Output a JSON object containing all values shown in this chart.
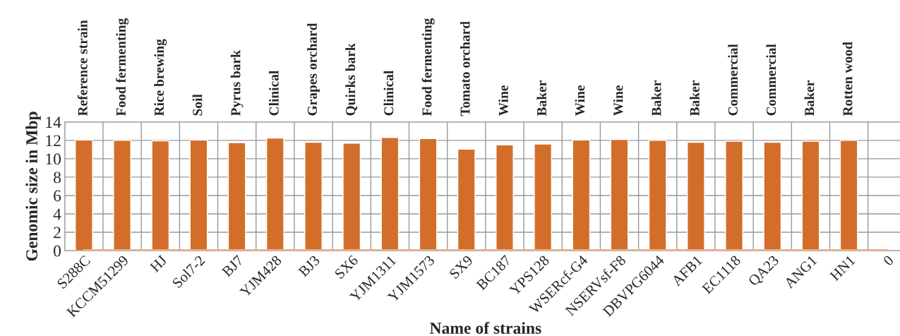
{
  "chart_data": {
    "type": "bar",
    "xlabel": "Name of strains",
    "ylabel": "Genomic size in Mbp",
    "categories": [
      "S288C",
      "KCCM51299",
      "HJ",
      "Sol7-2",
      "BJ7",
      "YJM428",
      "BJ3",
      "SX6",
      "YJM1311",
      "YJM1573",
      "SX9",
      "BC187",
      "YPS128",
      "WSERcf-G4",
      "NSERVsf-F8",
      "DBVPG6044",
      "AFB1",
      "EC1118",
      "QA23",
      "ANG1",
      "HN1",
      "0"
    ],
    "series": [
      {
        "color": "#d26e2a",
        "values": [
          12.05,
          12.0,
          11.95,
          12.05,
          11.75,
          12.25,
          11.8,
          11.7,
          12.3,
          12.2,
          11.05,
          11.5,
          11.6,
          12.05,
          12.1,
          12.0,
          11.8,
          11.9,
          11.8,
          11.9,
          12.0,
          null
        ]
      },
      {
        "type": "line",
        "color": "#f4b183",
        "values": [
          0,
          0,
          0,
          0,
          0,
          0,
          0,
          0,
          0,
          0,
          0,
          0,
          0,
          0,
          0,
          0,
          0,
          0,
          0,
          0,
          0,
          0
        ]
      }
    ],
    "ylim": [
      0,
      14
    ],
    "yticks": [
      0,
      2,
      4,
      6,
      8,
      10,
      12,
      14
    ],
    "grid": true,
    "annotations": [
      "Reference strain",
      "Food fermenting",
      "Rice brewing",
      "Soil",
      "Pyrus bark",
      "Clinical",
      "Grapes orchard",
      "Quirks bark",
      "Clinical",
      "Food fermenting",
      "Tomato orchard",
      "Wine",
      "Baker",
      "Wine",
      "Wine",
      "Baker",
      "Baker",
      "Commercial",
      "Commercial",
      "Baker",
      "Rotten wood"
    ]
  }
}
